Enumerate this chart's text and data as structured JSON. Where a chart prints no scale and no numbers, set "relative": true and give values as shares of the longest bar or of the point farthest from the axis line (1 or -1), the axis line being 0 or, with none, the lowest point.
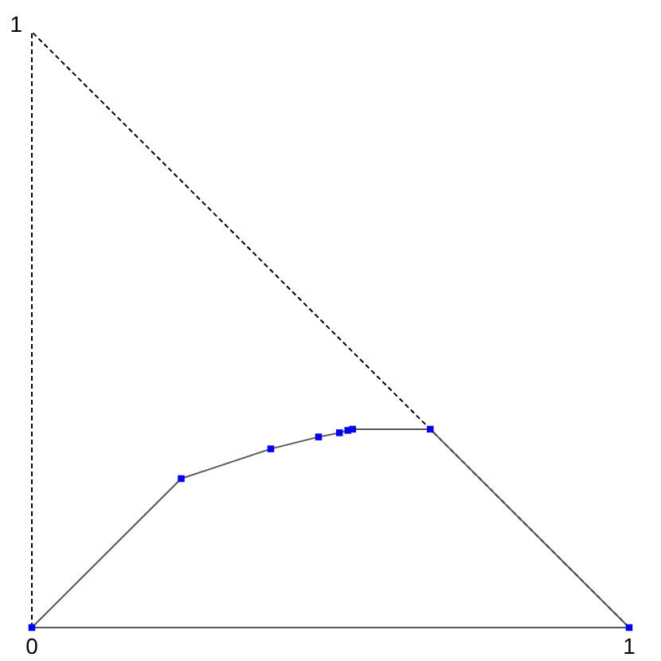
{
  "chart_data": {
    "type": "line",
    "relative": true,
    "xlim": [
      0,
      1
    ],
    "xticks": [
      0,
      1
    ],
    "annotations": [
      {
        "text": "1",
        "x": 0,
        "y": 1
      }
    ],
    "series": [
      {
        "color": "#000000",
        "line_style": "dashed",
        "marker": "none",
        "x": [
          0,
          0,
          1
        ],
        "values": [
          0,
          1,
          0
        ]
      },
      {
        "color": "#555555",
        "line_style": "solid",
        "marker": "none",
        "x": [
          0,
          1
        ],
        "values": [
          0,
          0
        ]
      },
      {
        "color": "#555555",
        "line_style": "solid",
        "marker": "none",
        "x": [
          0,
          0.25,
          0.4,
          0.48,
          0.515,
          0.529,
          0.537,
          0.667,
          1
        ],
        "values": [
          0,
          0.25,
          0.3,
          0.32,
          0.327,
          0.331,
          0.333,
          0.333,
          0
        ]
      },
      {
        "type": "scatter",
        "color": "#0000ff",
        "marker": "square",
        "x": [
          0,
          0.25,
          0.4,
          0.48,
          0.515,
          0.529,
          0.537,
          0.667,
          1
        ],
        "values": [
          0,
          0.25,
          0.3,
          0.32,
          0.327,
          0.331,
          0.333,
          0.333,
          0
        ]
      }
    ]
  }
}
